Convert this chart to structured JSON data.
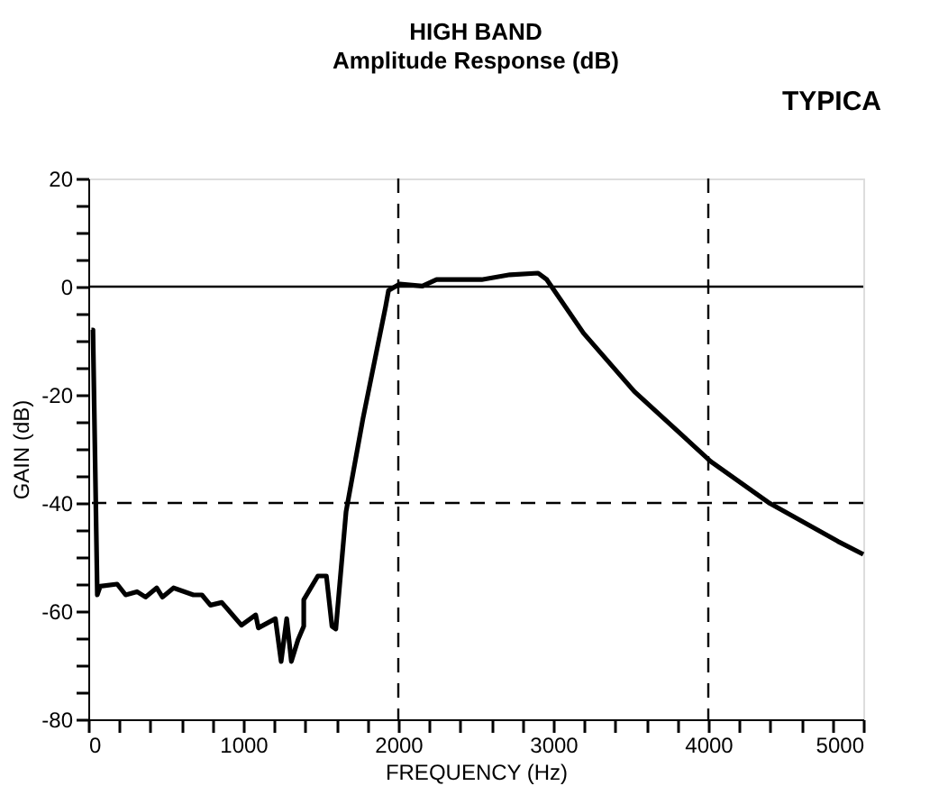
{
  "chart_data": {
    "type": "line",
    "title": "HIGH BAND",
    "subtitle": "Amplitude Response (dB)",
    "xlabel": "FREQUENCY (Hz)",
    "ylabel": "GAIN (dB)",
    "annotations": [
      "TYPICA"
    ],
    "series": [
      {
        "color": "#000000",
        "x": [
          20,
          30,
          58,
          77,
          186,
          241,
          314,
          369,
          441,
          478,
          550,
          678,
          733,
          788,
          861,
          988,
          1080,
          1097,
          1207,
          1244,
          1280,
          1310,
          1353,
          1390,
          1390,
          1481,
          1536,
          1572,
          1597,
          1663,
          1772,
          1918,
          1937,
          2010,
          2155,
          2247,
          2538,
          2720,
          2902,
          2958,
          3195,
          3523,
          4015,
          4398,
          4836,
          5000
        ],
        "values": [
          -8,
          -8,
          -57,
          -55.4,
          -55,
          -57,
          -56.4,
          -57.4,
          -55.7,
          -57.4,
          -55.7,
          -57,
          -57,
          -58.9,
          -58.4,
          -62.6,
          -60.7,
          -63.1,
          -61.4,
          -69.3,
          -61.4,
          -69.3,
          -65.3,
          -62.8,
          -57.9,
          -53.5,
          -53.5,
          -62.8,
          -63.3,
          -41.6,
          -24.4,
          -3.7,
          -0.7,
          0.5,
          0.1,
          1.3,
          1.3,
          2.2,
          2.5,
          1.3,
          -8.6,
          -19.4,
          -32.3,
          -40.1,
          -47.1,
          -49.5
        ]
      }
    ],
    "xlim": [
      0,
      5000
    ],
    "xticks": [
      0,
      {
        "value": 200,
        "label": null
      },
      {
        "value": 400,
        "label": null
      },
      {
        "value": 600,
        "label": null
      },
      {
        "value": 800,
        "label": null
      },
      1000,
      {
        "value": 1200,
        "label": null
      },
      {
        "value": 1400,
        "label": null
      },
      {
        "value": 1600,
        "label": null
      },
      {
        "value": 1800,
        "label": null
      },
      2000,
      {
        "value": 2200,
        "label": null
      },
      {
        "value": 2400,
        "label": null
      },
      {
        "value": 2600,
        "label": null
      },
      {
        "value": 2800,
        "label": null
      },
      3000,
      {
        "value": 3200,
        "label": null
      },
      {
        "value": 3400,
        "label": null
      },
      {
        "value": 3600,
        "label": null
      },
      {
        "value": 3800,
        "label": null
      },
      4000,
      {
        "value": 4200,
        "label": null
      },
      {
        "value": 4400,
        "label": null
      },
      {
        "value": 4600,
        "label": null
      },
      {
        "value": 4800,
        "label": null
      },
      5000
    ],
    "ylim": [
      -80,
      20
    ],
    "yticks": [
      -80,
      {
        "value": -75,
        "label": null
      },
      {
        "value": -70,
        "label": null
      },
      {
        "value": -65,
        "label": null
      },
      -60,
      {
        "value": -55,
        "label": null
      },
      {
        "value": -50,
        "label": null
      },
      {
        "value": -45,
        "label": null
      },
      -40,
      {
        "value": -35,
        "label": null
      },
      {
        "value": -30,
        "label": null
      },
      {
        "value": -25,
        "label": null
      },
      -20,
      {
        "value": -15,
        "label": null
      },
      {
        "value": -10,
        "label": null
      },
      {
        "value": -5,
        "label": null
      },
      0,
      {
        "value": 5,
        "label": null
      },
      {
        "value": 10,
        "label": null
      },
      {
        "value": 15,
        "label": null
      },
      20
    ],
    "ref_lines": [
      {
        "axis": "y",
        "value": 0,
        "color": "#000000",
        "line_style": "solid"
      },
      {
        "axis": "y",
        "value": -40,
        "color": "#000000",
        "line_style": "dashed"
      },
      {
        "axis": "x",
        "value": 2000,
        "color": "#000000",
        "line_style": "dashed"
      },
      {
        "axis": "x",
        "value": 4000,
        "color": "#000000",
        "line_style": "dashed"
      }
    ],
    "grid": false,
    "marker": "none",
    "line_style": "solid"
  }
}
